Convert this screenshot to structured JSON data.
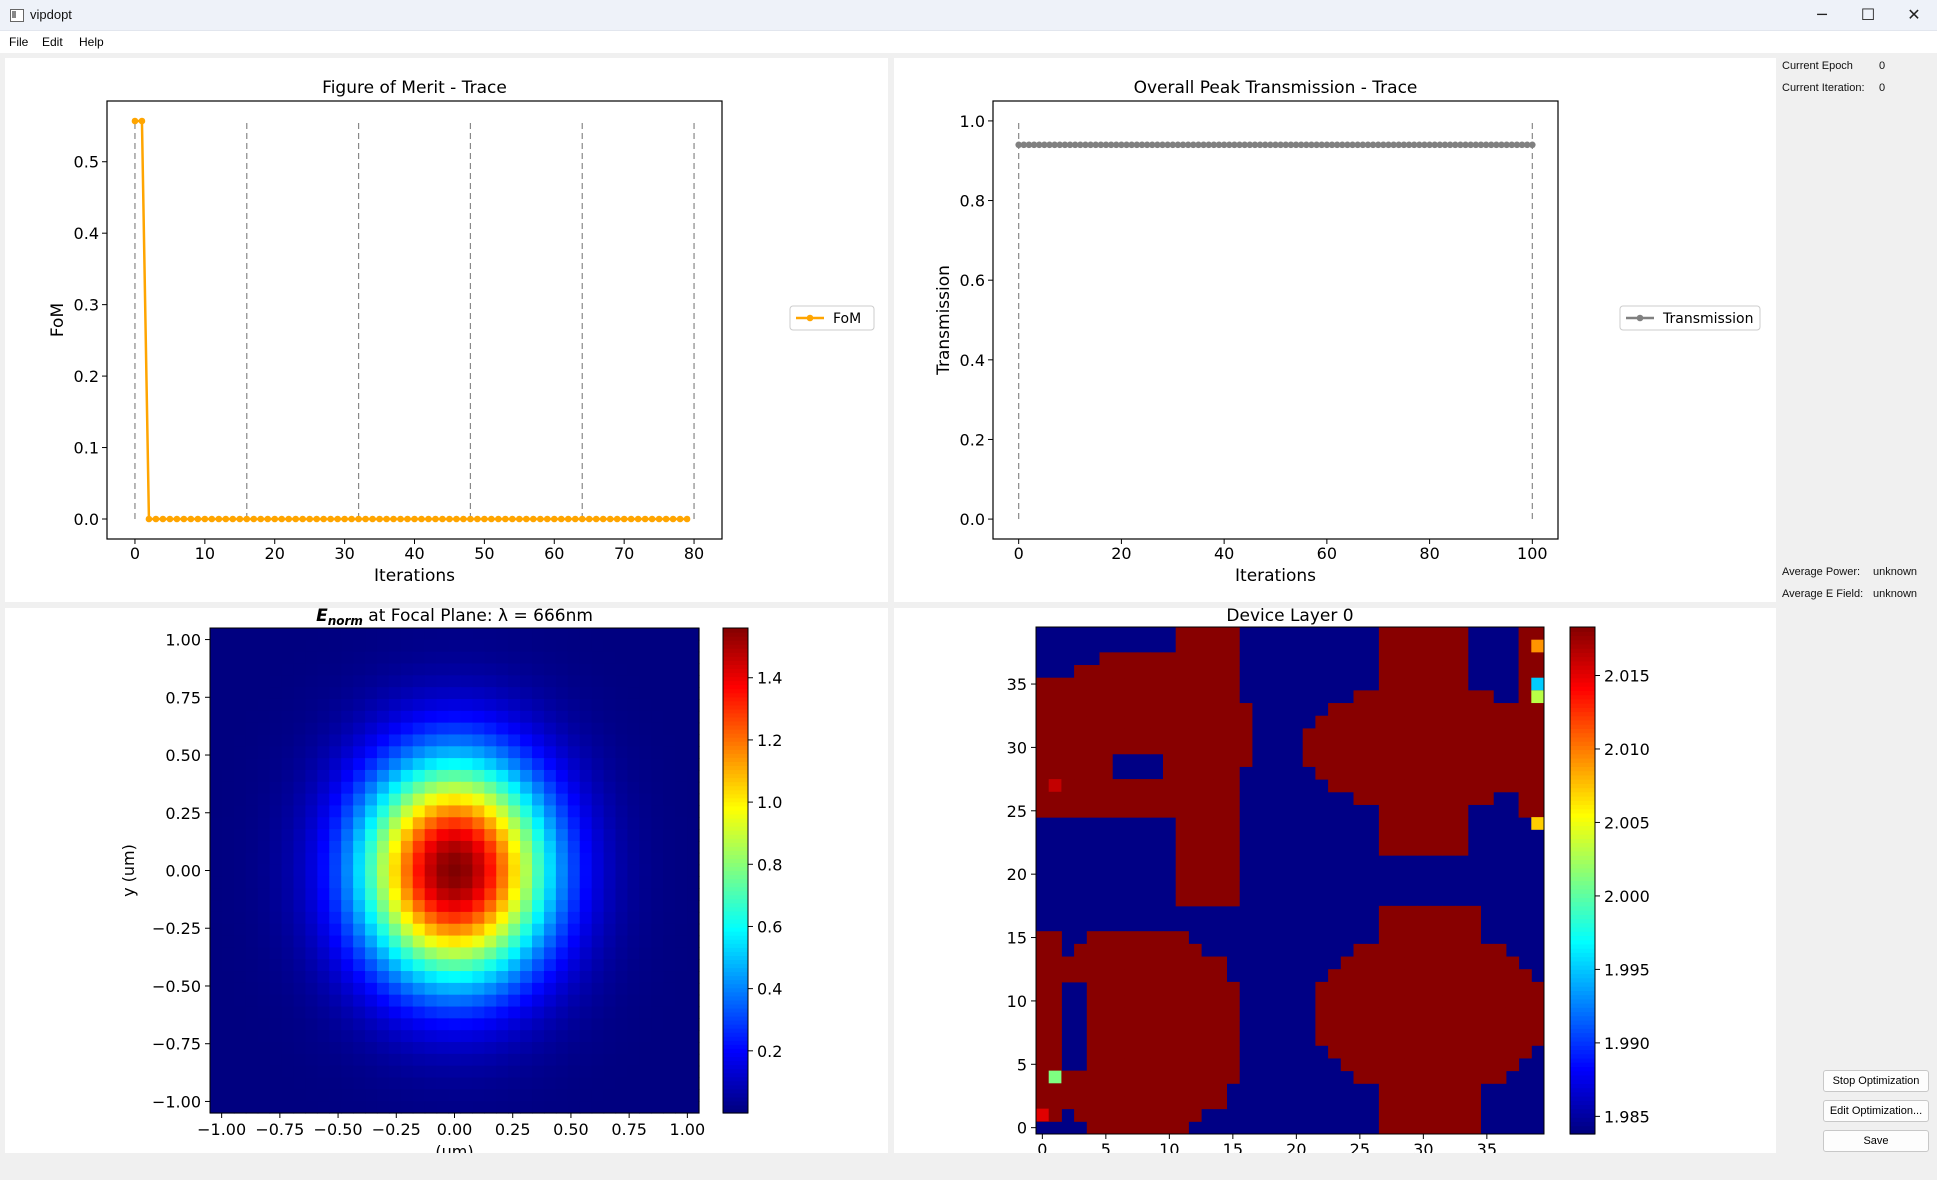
{
  "window": {
    "title": "vipdopt",
    "minimize": "─",
    "maximize": "☐",
    "close": "✕"
  },
  "menu": {
    "file": "File",
    "edit": "Edit",
    "help": "Help"
  },
  "status": {
    "epoch_label": "Current Epoch",
    "epoch_value": "0",
    "iteration_label": "Current Iteration:",
    "iteration_value": "0",
    "power_label": "Average Power:",
    "power_value": "unknown",
    "efield_label": "Average E Field:",
    "efield_value": "unknown"
  },
  "buttons": {
    "stop": "Stop Optimization",
    "edit": "Edit Optimization...",
    "save": "Save"
  },
  "colors": {
    "fom": "#ffa500",
    "transmission": "#808080"
  },
  "chart_data": [
    {
      "type": "line",
      "title": "Figure of Merit - Trace",
      "xlabel": "Iterations",
      "ylabel": "FoM",
      "legend": "FoM",
      "legend_position": "right-outside",
      "xlim": [
        -4,
        84
      ],
      "ylim": [
        -0.028,
        0.585
      ],
      "xticks": [
        0,
        10,
        20,
        30,
        40,
        50,
        60,
        70,
        80
      ],
      "yticks": [
        0.0,
        0.1,
        0.2,
        0.3,
        0.4,
        0.5
      ],
      "vlines": [
        0,
        16,
        32,
        48,
        64,
        80
      ],
      "x": [
        0,
        1,
        2,
        3,
        4,
        5,
        6,
        7,
        8,
        9,
        10,
        11,
        12,
        13,
        14,
        15,
        16,
        17,
        18,
        19,
        20,
        21,
        22,
        23,
        24,
        25,
        26,
        27,
        28,
        29,
        30,
        31,
        32,
        33,
        34,
        35,
        36,
        37,
        38,
        39,
        40,
        41,
        42,
        43,
        44,
        45,
        46,
        47,
        48,
        49,
        50,
        51,
        52,
        53,
        54,
        55,
        56,
        57,
        58,
        59,
        60,
        61,
        62,
        63,
        64,
        65,
        66,
        67,
        68,
        69,
        70,
        71,
        72,
        73,
        74,
        75,
        76,
        77,
        78,
        79
      ],
      "y": [
        0.557,
        0.557,
        0,
        0,
        0,
        0,
        0,
        0,
        0,
        0,
        0,
        0,
        0,
        0,
        0,
        0,
        0,
        0,
        0,
        0,
        0,
        0,
        0,
        0,
        0,
        0,
        0,
        0,
        0,
        0,
        0,
        0,
        0,
        0,
        0,
        0,
        0,
        0,
        0,
        0,
        0,
        0,
        0,
        0,
        0,
        0,
        0,
        0,
        0,
        0,
        0,
        0,
        0,
        0,
        0,
        0,
        0,
        0,
        0,
        0,
        0,
        0,
        0,
        0,
        0,
        0,
        0,
        0,
        0,
        0,
        0,
        0,
        0,
        0,
        0,
        0,
        0,
        0,
        0,
        0
      ]
    },
    {
      "type": "line",
      "title": "Overall Peak Transmission - Trace",
      "xlabel": "Iterations",
      "ylabel": "Transmission",
      "legend": "Transmission",
      "legend_position": "right-outside",
      "xlim": [
        -5,
        105
      ],
      "ylim": [
        -0.05,
        1.05
      ],
      "xticks": [
        0,
        20,
        40,
        60,
        80,
        100
      ],
      "yticks": [
        0.0,
        0.2,
        0.4,
        0.6,
        0.8,
        1.0
      ],
      "vlines": [
        0,
        100
      ],
      "x_start": 0,
      "x_end": 100,
      "y_constant": 0.94
    },
    {
      "type": "heatmap",
      "title_prefix": "E",
      "title_subscript": "norm",
      "title_suffix": " at Focal Plane: λ =  666nm",
      "ylabel": "y (um)",
      "xlabel": "(um)",
      "xlim": [
        -1.05,
        1.05
      ],
      "ylim": [
        -1.05,
        1.05
      ],
      "xticks": [
        "−1.00",
        "−0.75",
        "−0.50",
        "−0.25",
        "0.00",
        "0.25",
        "0.50",
        "0.75",
        "1.00"
      ],
      "yticks": [
        "1.00",
        "0.75",
        "0.50",
        "0.25",
        "0.00",
        "−0.25",
        "−0.50",
        "−0.75",
        "−1.00"
      ],
      "grid": 41,
      "peak": 1.56,
      "sigma_x": 0.28,
      "sigma_y": 0.33,
      "colorbar_ticks": [
        0.2,
        0.4,
        0.6,
        0.8,
        1.0,
        1.2,
        1.4
      ],
      "colorbar_range": [
        0.0,
        1.56
      ],
      "colormap": "jet"
    },
    {
      "type": "heatmap",
      "title": "Device Layer 0",
      "xticks": [
        0,
        5,
        10,
        15,
        20,
        25,
        30,
        35
      ],
      "yticks": [
        0,
        5,
        10,
        15,
        20,
        25,
        30,
        35
      ],
      "grid": 40,
      "low_value": 1.984,
      "high_value": 2.018,
      "colorbar_ticks": [
        "2.015",
        "2.010",
        "2.005",
        "2.000",
        "1.995",
        "1.990",
        "1.985"
      ],
      "colorbar_range": [
        1.9838,
        2.0183
      ],
      "colormap": "jet"
    }
  ]
}
